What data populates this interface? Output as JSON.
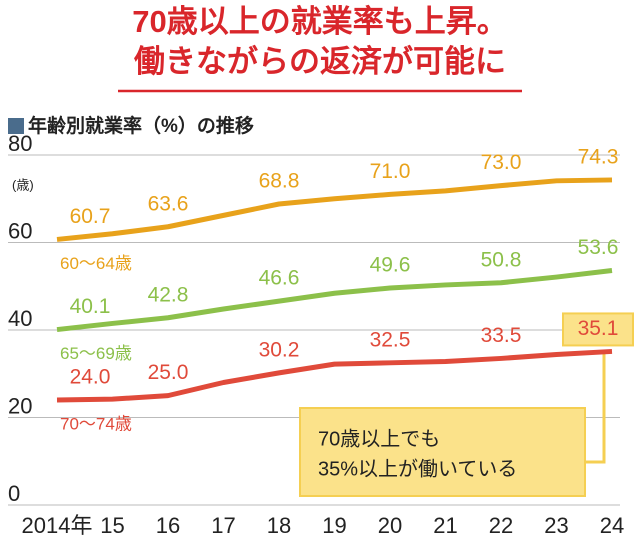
{
  "chart_data": {
    "type": "line",
    "title": [
      "70歳以上の就業率も上昇。",
      "働きながらの返済が可能に"
    ],
    "subtitle": "年齢別就業率（%）の推移",
    "y_unit": "(歳)",
    "categories": [
      "2014年",
      "15",
      "16",
      "17",
      "18",
      "19",
      "20",
      "21",
      "22",
      "23",
      "24"
    ],
    "ylim": [
      0,
      80
    ],
    "yticks": [
      0,
      20,
      40,
      60,
      80
    ],
    "grid": true,
    "series": [
      {
        "name": "60～64歳",
        "color": "#e8a21b",
        "values": [
          60.7,
          62.0,
          63.6,
          66.2,
          68.8,
          70.0,
          71.0,
          71.8,
          73.0,
          74.1,
          74.3
        ],
        "value_labels": [
          "60.7",
          null,
          "63.6",
          null,
          "68.8",
          null,
          "71.0",
          null,
          "73.0",
          null,
          "74.3"
        ]
      },
      {
        "name": "65～69歳",
        "color": "#8cc04a",
        "values": [
          40.1,
          41.5,
          42.8,
          44.8,
          46.6,
          48.4,
          49.6,
          50.3,
          50.8,
          52.1,
          53.6
        ],
        "value_labels": [
          "40.1",
          null,
          "42.8",
          null,
          "46.6",
          null,
          "49.6",
          null,
          "50.8",
          null,
          "53.6"
        ]
      },
      {
        "name": "70～74歳",
        "color": "#e04a3a",
        "values": [
          24.0,
          24.2,
          25.0,
          28.0,
          30.2,
          32.2,
          32.5,
          32.8,
          33.5,
          34.4,
          35.1
        ],
        "value_labels": [
          "24.0",
          null,
          "25.0",
          null,
          "30.2",
          null,
          "32.5",
          null,
          "33.5",
          null,
          "35.1"
        ]
      }
    ],
    "annotation": [
      "70歳以上でも",
      "35%以上が働いている"
    ]
  }
}
